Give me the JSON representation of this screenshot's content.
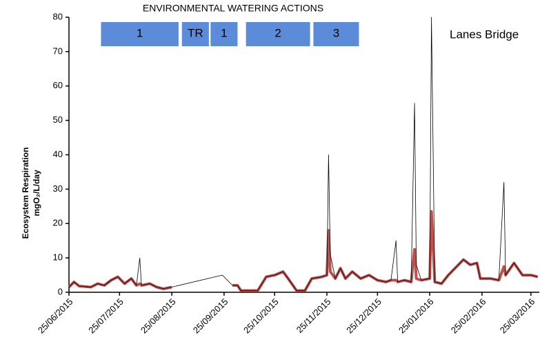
{
  "chart_data": {
    "type": "line",
    "title": "ENVIRONMENTAL WATERING ACTIONS",
    "site_label": "Lanes Bridge",
    "y_label": [
      "Ecosystem Respiration",
      "mgO₂/L/day"
    ],
    "actions": [
      {
        "label": "1",
        "start": "2015-07-14",
        "end": "2015-08-29"
      },
      {
        "label": "TR",
        "start": "2015-08-31",
        "end": "2015-09-16"
      },
      {
        "label": "1",
        "start": "2015-09-17",
        "end": "2015-10-03"
      },
      {
        "label": "2",
        "start": "2015-10-08",
        "end": "2015-11-15"
      },
      {
        "label": "3",
        "start": "2015-11-17",
        "end": "2015-12-14"
      }
    ],
    "x": [
      "2015-06-25",
      "2015-06-28",
      "2015-07-01",
      "2015-07-08",
      "2015-07-12",
      "2015-07-16",
      "2015-07-20",
      "2015-07-24",
      "2015-07-28",
      "2015-08-01",
      "2015-08-04",
      "2015-08-06",
      "2015-08-07",
      "2015-08-12",
      "2015-08-16",
      "2015-08-20",
      "2015-08-25",
      "2015-09-24",
      "2015-09-30",
      "2015-10-03",
      "2015-10-05",
      "2015-10-15",
      "2015-10-20",
      "2015-10-25",
      "2015-10-30",
      "2015-11-02",
      "2015-11-07",
      "2015-11-12",
      "2015-11-16",
      "2015-11-22",
      "2015-11-25",
      "2015-11-26",
      "2015-11-27",
      "2015-11-30",
      "2015-12-03",
      "2015-12-06",
      "2015-12-10",
      "2015-12-15",
      "2015-12-20",
      "2015-12-25",
      "2015-12-30",
      "2016-01-02",
      "2016-01-05",
      "2016-01-06",
      "2016-01-10",
      "2016-01-14",
      "2016-01-16",
      "2016-01-17",
      "2016-01-20",
      "2016-01-25",
      "2016-01-26",
      "2016-01-28",
      "2016-02-01",
      "2016-02-05",
      "2016-02-10",
      "2016-02-14",
      "2016-02-18",
      "2016-02-22",
      "2016-02-24",
      "2016-03-01",
      "2016-03-06",
      "2016-03-09",
      "2016-03-10",
      "2016-03-15",
      "2016-03-20",
      "2016-03-25",
      "2016-03-29"
    ],
    "series": [
      {
        "name": "Ecosystem respiration (band)",
        "color": "#c0504d",
        "width": 4,
        "values": [
          1.5,
          3,
          1.8,
          1.5,
          2.5,
          2,
          3.5,
          4.5,
          2.5,
          4,
          2,
          2.5,
          2,
          2.5,
          1.5,
          1,
          1.5,
          null,
          2,
          2,
          0.5,
          0.5,
          4.5,
          5,
          6,
          4,
          0.5,
          0.5,
          4,
          4.5,
          5,
          18,
          6,
          4,
          7,
          4,
          6,
          4,
          5,
          3.5,
          3,
          3.5,
          3.5,
          3,
          3.5,
          3,
          12.5,
          4,
          3.5,
          4,
          23.5,
          3,
          2.5,
          5,
          7.5,
          9.5,
          8,
          8.5,
          4,
          4,
          3.5,
          7.5,
          5,
          8.5,
          5,
          5,
          4.5
        ]
      },
      {
        "name": "Ecosystem respiration",
        "color": "#000000",
        "width": 0.8,
        "values": [
          1.5,
          3,
          1.8,
          1.5,
          2.5,
          2,
          3.5,
          4.5,
          2.5,
          4,
          2,
          10,
          2,
          2.5,
          1.5,
          1,
          1.5,
          5,
          2,
          2,
          0.5,
          0.5,
          4.5,
          5,
          6,
          4,
          0.5,
          0.5,
          4,
          4.5,
          5,
          40,
          11,
          4,
          7,
          4,
          6,
          4,
          5,
          3.5,
          3,
          3.5,
          15,
          3,
          3.5,
          3,
          55,
          8,
          3.5,
          4,
          80,
          3,
          2.5,
          5,
          7.5,
          9.5,
          8,
          8.5,
          4,
          4,
          3.5,
          32,
          5,
          8.5,
          5,
          5,
          4.5
        ]
      }
    ],
    "xlim": [
      "2015-06-25",
      "2016-03-30"
    ],
    "xticks": [
      {
        "value": "2015-06-25",
        "label": "25/06/2015"
      },
      {
        "value": "2015-07-25",
        "label": "25/07/2015"
      },
      {
        "value": "2015-08-25",
        "label": "25/08/2015"
      },
      {
        "value": "2015-09-25",
        "label": "25/09/2015"
      },
      {
        "value": "2015-10-25",
        "label": "25/10/2015"
      },
      {
        "value": "2015-11-25",
        "label": "25/11/2015"
      },
      {
        "value": "2015-12-25",
        "label": "25/12/2015"
      },
      {
        "value": "2016-01-25",
        "label": "25/01/2016"
      },
      {
        "value": "2016-02-25",
        "label": "25/02/2016"
      },
      {
        "value": "2016-03-25",
        "label": "25/03/2016"
      }
    ],
    "ylim": [
      0,
      80
    ],
    "yticks": [
      0,
      10,
      20,
      30,
      40,
      50,
      60,
      70,
      80
    ],
    "action_color": "#5b8bd9"
  }
}
